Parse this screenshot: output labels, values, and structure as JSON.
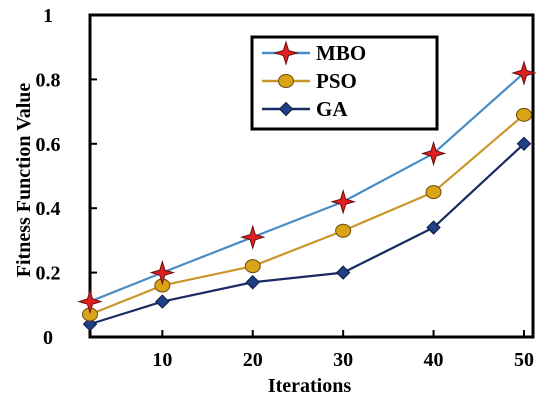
{
  "chart_data": {
    "type": "line",
    "title": "",
    "xlabel": "Iterations",
    "ylabel": "Fitness Function Value",
    "xlim": [
      2,
      51
    ],
    "ylim": [
      0,
      1
    ],
    "x_ticks": [
      10,
      20,
      30,
      40,
      50
    ],
    "y_ticks": [
      0,
      0.2,
      0.4,
      0.6,
      0.8,
      1
    ],
    "y_tick_labels": [
      "0",
      "0.2",
      "0.4",
      "0.6",
      "0.8",
      "1"
    ],
    "x_tick_labels": [
      "10",
      "20",
      "30",
      "40",
      "50"
    ],
    "grid": false,
    "legend_position": "top-center",
    "series": [
      {
        "name": "MBO",
        "color": "#4a8cc4",
        "marker": "star",
        "marker_color": "#e02020",
        "x": [
          2,
          10,
          20,
          30,
          40,
          50
        ],
        "y": [
          0.11,
          0.2,
          0.31,
          0.42,
          0.57,
          0.82
        ]
      },
      {
        "name": "PSO",
        "color": "#c9962a",
        "marker": "circle",
        "marker_color": "#d9a417",
        "x": [
          2,
          10,
          20,
          30,
          40,
          50
        ],
        "y": [
          0.07,
          0.16,
          0.22,
          0.33,
          0.45,
          0.69
        ]
      },
      {
        "name": "GA",
        "color": "#1a2b63",
        "marker": "diamond",
        "marker_color": "#1f3f86",
        "x": [
          2,
          10,
          20,
          30,
          40,
          50
        ],
        "y": [
          0.04,
          0.11,
          0.17,
          0.2,
          0.34,
          0.6
        ]
      }
    ]
  }
}
